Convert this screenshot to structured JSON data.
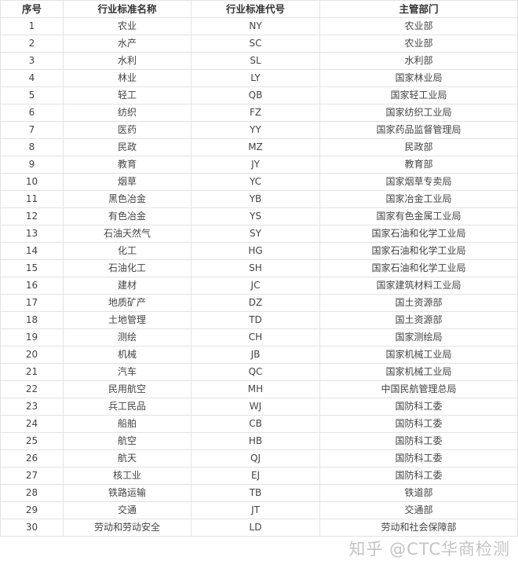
{
  "headers": [
    "序号",
    "行业标准名称",
    "行业标准代号",
    "主管部门"
  ],
  "rows": [
    [
      "1",
      "农业",
      "NY",
      "农业部"
    ],
    [
      "2",
      "水产",
      "SC",
      "农业部"
    ],
    [
      "3",
      "水利",
      "SL",
      "水利部"
    ],
    [
      "4",
      "林业",
      "LY",
      "国家林业局"
    ],
    [
      "5",
      "轻工",
      "QB",
      "国家轻工业局"
    ],
    [
      "6",
      "纺织",
      "FZ",
      "国家纺织工业局"
    ],
    [
      "7",
      "医药",
      "YY",
      "国家药品监督管理局"
    ],
    [
      "8",
      "民政",
      "MZ",
      "民政部"
    ],
    [
      "9",
      "教育",
      "JY",
      "教育部"
    ],
    [
      "10",
      "烟草",
      "YC",
      "国家烟草专卖局"
    ],
    [
      "11",
      "黑色冶金",
      "YB",
      "国家冶金工业局"
    ],
    [
      "12",
      "有色冶金",
      "YS",
      "国家有色金属工业局"
    ],
    [
      "13",
      "石油天然气",
      "SY",
      "国家石油和化学工业局"
    ],
    [
      "14",
      "化工",
      "HG",
      "国家石油和化学工业局"
    ],
    [
      "15",
      "石油化工",
      "SH",
      "国家石油和化学工业局"
    ],
    [
      "16",
      "建材",
      "JC",
      "国家建筑材料工业局"
    ],
    [
      "17",
      "地质矿产",
      "DZ",
      "国土资源部"
    ],
    [
      "18",
      "土地管理",
      "TD",
      "国土资源部"
    ],
    [
      "19",
      "测绘",
      "CH",
      "国家测绘局"
    ],
    [
      "20",
      "机械",
      "JB",
      "国家机械工业局"
    ],
    [
      "21",
      "汽车",
      "QC",
      "国家机械工业局"
    ],
    [
      "22",
      "民用航空",
      "MH",
      "中国民航管理总局"
    ],
    [
      "23",
      "兵工民品",
      "WJ",
      "国防科工委"
    ],
    [
      "24",
      "船舶",
      "CB",
      "国防科工委"
    ],
    [
      "25",
      "航空",
      "HB",
      "国防科工委"
    ],
    [
      "26",
      "航天",
      "QJ",
      "国防科工委"
    ],
    [
      "27",
      "核工业",
      "EJ",
      "国防科工委"
    ],
    [
      "28",
      "铁路运输",
      "TB",
      "铁道部"
    ],
    [
      "29",
      "交通",
      "JT",
      "交通部"
    ],
    [
      "30",
      "劳动和劳动安全",
      "LD",
      "劳动和社会保障部"
    ]
  ],
  "watermark": "知乎 @CTC华商检测"
}
